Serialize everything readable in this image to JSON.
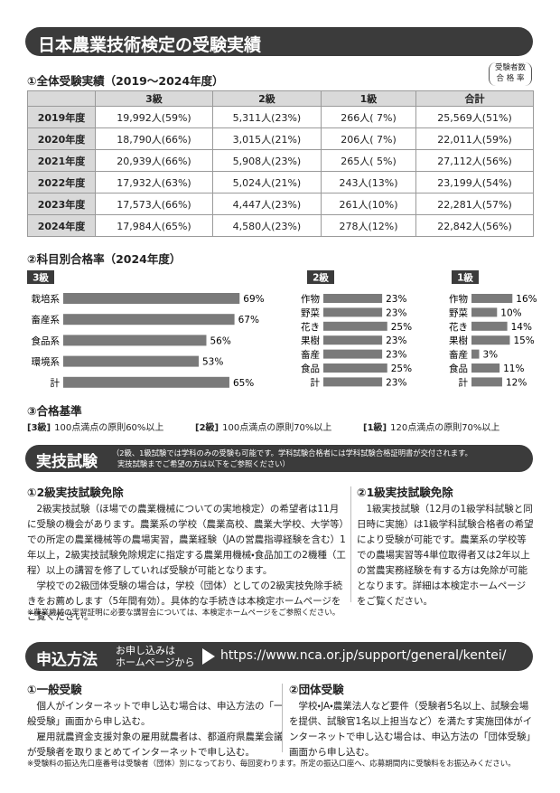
{
  "header": {
    "title": "日本農業技術検定の受験実績"
  },
  "results": {
    "title": "①全体受験実績（2019〜2024年度）",
    "note": [
      "受験者数",
      "合 格 率"
    ],
    "table": {
      "columns": [
        "3級",
        "2級",
        "1級",
        "合計"
      ],
      "rows": [
        {
          "year": "2019年度",
          "cells": [
            "19,992人(59%)",
            "5,311人(23%)",
            "266人( 7%)",
            "25,569人(51%)"
          ]
        },
        {
          "year": "2020年度",
          "cells": [
            "18,790人(66%)",
            "3,015人(21%)",
            "206人( 7%)",
            "22,011人(59%)"
          ]
        },
        {
          "year": "2021年度",
          "cells": [
            "20,939人(66%)",
            "5,908人(23%)",
            "265人( 5%)",
            "27,112人(56%)"
          ]
        },
        {
          "year": "2022年度",
          "cells": [
            "17,932人(63%)",
            "5,024人(21%)",
            "243人(13%)",
            "23,199人(54%)"
          ]
        },
        {
          "year": "2023年度",
          "cells": [
            "17,573人(66%)",
            "4,447人(23%)",
            "261人(10%)",
            "22,281人(57%)"
          ]
        },
        {
          "year": "2024年度",
          "cells": [
            "17,984人(65%)",
            "4,580人(23%)",
            "278人(12%)",
            "22,842人(56%)"
          ]
        }
      ]
    }
  },
  "subjects": {
    "title": "②科目別合格率（2024年度）",
    "charts": [
      {
        "type": "bar",
        "label": "3級",
        "color": "#7a7a7a",
        "categories": [
          "栽培系",
          "畜産系",
          "食品系",
          "環境系",
          "計"
        ],
        "values": [
          69,
          67,
          56,
          53,
          65
        ],
        "value_labels": [
          "69%",
          "67%",
          "56%",
          "53%",
          "65%"
        ]
      },
      {
        "type": "bar",
        "label": "2級",
        "color": "#7a7a7a",
        "categories": [
          "作物",
          "野菜",
          "花き",
          "果樹",
          "畜産",
          "食品",
          "計"
        ],
        "values": [
          23,
          23,
          25,
          23,
          23,
          25,
          23
        ],
        "value_labels": [
          "23%",
          "23%",
          "25%",
          "23%",
          "23%",
          "25%",
          "23%"
        ]
      },
      {
        "type": "bar",
        "label": "1級",
        "color": "#7a7a7a",
        "categories": [
          "作物",
          "野菜",
          "花き",
          "果樹",
          "畜産",
          "食品",
          "計"
        ],
        "values": [
          16,
          10,
          14,
          15,
          3,
          11,
          12
        ],
        "value_labels": [
          "16%",
          "10%",
          "14%",
          "15%",
          "3%",
          "11%",
          "12%"
        ]
      }
    ]
  },
  "criteria": {
    "title": "③合格基準",
    "items": [
      {
        "level": "[3級]",
        "text": "100点満点の原則60%以上"
      },
      {
        "level": "[2級]",
        "text": "100点満点の原則70%以上"
      },
      {
        "level": "[1級]",
        "text": "120点満点の原則70%以上"
      }
    ]
  },
  "practical": {
    "title": "実技試験",
    "note": [
      "（2級、1級試験では学科のみの受験も可能です。学科試験合格者には学科試験合格証明書が交付されます。",
      "実技試験までご希望の方は以下をご参照ください）"
    ],
    "columns": [
      {
        "heading": "①2級実技試験免除",
        "paragraphs": [
          "2級実技試験（ほ場での農業機械についての実地検定）の希望者は11月に受験の機会があります。農業系の学校（農業高校、農業大学校、大学等）での所定の農業機械等の農場実習，農業経験（JAの営農指導経験を含む）1年以上，2級実技試験免除規定に指定する農業用機械・食品加工の2機種（工程）以上の講習を修了していれば受験が可能となります。",
          "学校での2級団体受験の場合は，学校（団体）としての2級実技免除手続きをお薦めします（5年間有効）。具体的な手続きは本検定ホームページをご覧ください。"
        ]
      },
      {
        "heading": "②1級実技試験免除",
        "paragraphs": [
          "1級実技試験（12月の1級学科試験と同日時に実施）は1級学科試験合格者の希望により受験が可能です。農業系の学校等での農場実習等4単位取得者又は2年以上の営農実務経験を有する方は免除が可能となります。詳細は本検定ホームページをご覧ください。"
        ]
      }
    ],
    "footnote": "※農業機械の実習証明に必要な講習会については、本検定ホームページをご参照ください。"
  },
  "application": {
    "title": "申込方法",
    "sub": [
      "お申し込みは",
      "ホームページから"
    ],
    "url": "https://www.nca.or.jp/support/general/kentei/",
    "columns": [
      {
        "heading": "①一般受験",
        "paragraphs": [
          "個人がインターネットで申し込む場合は、申込方法の「一般受験」画面から申し込む。",
          "雇用就農資金支援対象の雇用就農者は、都道府県農業会議が受験者を取りまとめてインターネットで申し込む。"
        ]
      },
      {
        "heading": "②団体受験",
        "paragraphs": [
          "学校・JA・農業法人など要件（受験者5名以上、試験会場を提供、試験官1名以上担当など）を満たす実施団体がインターネットで申し込む場合は、申込方法の「団体受験」画面から申し込む。"
        ]
      }
    ],
    "footnote": "※受験料の振込先口座番号は受験者（団体）別になっており、毎回変わります。所定の振込口座へ、応募期間内に受験料をお振込みください。"
  }
}
